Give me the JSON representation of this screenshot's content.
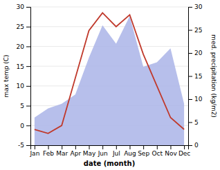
{
  "chart_data": {
    "type": "line",
    "categories": [
      "Jan",
      "Feb",
      "Mar",
      "Apr",
      "May",
      "Jun",
      "Jul",
      "Aug",
      "Sep",
      "Oct",
      "Nov",
      "Dec"
    ],
    "xlabel": "date (month)",
    "ylabel": "max temp (C)",
    "y2label": "med. precipitation (kg/m2)",
    "series": [
      {
        "type": "area",
        "axis": "y2",
        "color": "#aab4e8",
        "values": [
          6,
          8,
          9,
          11,
          19,
          26,
          22,
          28,
          17,
          18,
          21,
          9
        ]
      },
      {
        "type": "line",
        "color": "#c0392b",
        "values": [
          -1,
          -2,
          0,
          12,
          24,
          28.5,
          25,
          28,
          18,
          10,
          2,
          -1
        ]
      }
    ],
    "ylim": [
      -5,
      30
    ],
    "yticks": [
      -5,
      0,
      5,
      10,
      15,
      20,
      25,
      30
    ],
    "y2lim": [
      0,
      30
    ],
    "y2ticks": [
      0,
      5,
      10,
      15,
      20,
      25,
      30
    ],
    "grid": true
  }
}
